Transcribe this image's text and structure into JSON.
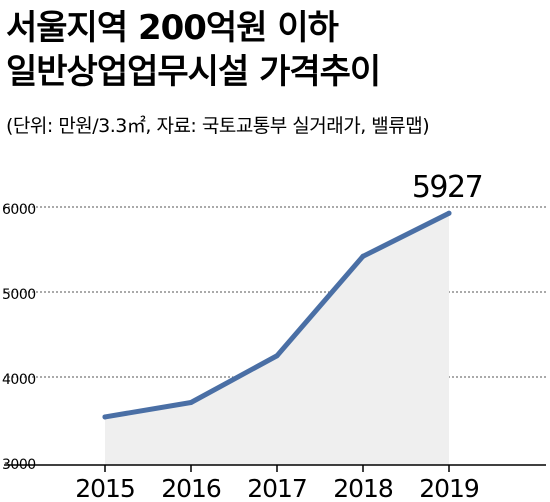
{
  "header": {
    "title_line1": "서울지역 200억원 이하",
    "title_line2": "일반상업업무시설 가격추이",
    "subtitle": "(단위: 만원/3.3㎡, 자료: 국토교통부 실거래가, 밸류맵)"
  },
  "chart_data": {
    "type": "area",
    "title": "서울지역 200억원 이하 일반상업업무시설 가격추이",
    "subtitle": "(단위: 만원/3.3㎡, 자료: 국토교통부 실거래가, 밸류맵)",
    "xlabel": "",
    "ylabel": "",
    "categories": [
      "2015",
      "2016",
      "2017",
      "2018",
      "2019"
    ],
    "series": [
      {
        "values": [
          3530,
          3700,
          4250,
          5420,
          5927
        ]
      }
    ],
    "yticks": [
      "3000",
      "4000",
      "5000",
      "6000"
    ],
    "ylim": [
      3000,
      6000
    ],
    "grid": true,
    "grid_style": "dotted horizontal",
    "annotations": [
      {
        "category": "2019",
        "text": "5927"
      }
    ],
    "colors": {
      "line": "#4a6fa5",
      "fill": "#efefef",
      "grid": "#555555",
      "axis": "#000000"
    }
  }
}
